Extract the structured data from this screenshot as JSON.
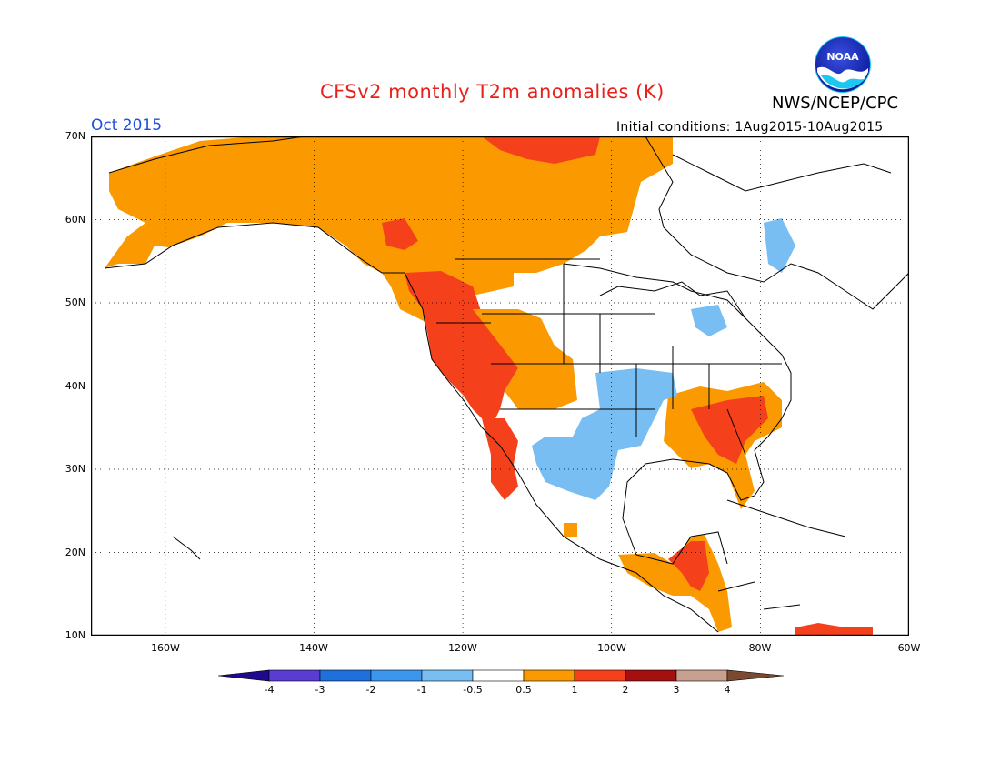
{
  "header": {
    "title": "CFSv2 monthly T2m anomalies (K)",
    "org": "NWS/NCEP/CPC",
    "period": "Oct 2015",
    "initial_conditions": "Initial conditions: 1Aug2015-10Aug2015",
    "logo_text": "NOAA"
  },
  "map": {
    "lat_range": [
      10,
      70
    ],
    "lon_range": [
      -170,
      -60
    ],
    "lat_ticks": [
      "70N",
      "60N",
      "50N",
      "40N",
      "30N",
      "20N",
      "10N"
    ],
    "lon_ticks": [
      "160W",
      "140W",
      "120W",
      "100W",
      "80W",
      "60W"
    ],
    "gridlines": "dotted",
    "land_outline_color": "#000000"
  },
  "colorbar": {
    "labels": [
      "-4",
      "-3",
      "-2",
      "-1",
      "-0.5",
      "0.5",
      "1",
      "2",
      "3",
      "4"
    ],
    "colors": [
      "#1e0a8c",
      "#5a3cd0",
      "#1f6fdc",
      "#3d96ee",
      "#79bef2",
      "#ffffff",
      "#fa9a00",
      "#f5401c",
      "#a41010",
      "#c8a090",
      "#7a4a30"
    ]
  },
  "anomaly_regions": {
    "warm_0_5_to_1": "Alaska, western/northern Canada, central Rockies, southeastern US, Mexico, Central America",
    "warm_1_to_2": "US West Coast, Pacific Northwest, Southeast US, Yukon/NW Canada, Yucatan, northern South America",
    "cool_minus_1_to_minus_0_5": "Texas, Oklahoma, Kansas, northern Mexico, Great Lakes, Quebec"
  }
}
